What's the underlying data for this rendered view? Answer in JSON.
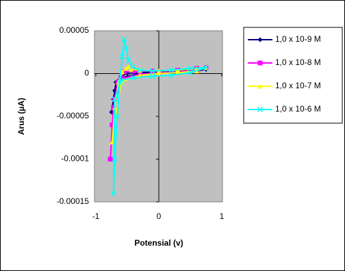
{
  "chart_data": {
    "type": "line",
    "x_label": "Potensial (v)",
    "y_label": "Arus (µA)",
    "xlim": [
      -1,
      1
    ],
    "xticks": [
      -1,
      0,
      1
    ],
    "ylim": [
      -0.00015,
      5e-05
    ],
    "yticks": [
      5e-05,
      0,
      -5e-05,
      -0.0001,
      -0.00015
    ],
    "plot_background": "#c0c0c0",
    "legend": "right",
    "series": [
      {
        "name": "1,0 x 10-9 M",
        "color": "#000080",
        "marker": "diamond",
        "x": [
          -0.75,
          -0.72,
          -0.68,
          -0.6,
          -0.5,
          -0.3,
          0,
          0.3,
          0.6,
          0.75,
          0.6,
          0.3,
          0,
          -0.3,
          -0.6,
          -0.7,
          -0.75
        ],
        "values": [
          -4.5e-05,
          -3e-05,
          -1e-05,
          -3e-06,
          0,
          1e-06,
          2e-06,
          3e-06,
          4e-06,
          5e-06,
          3e-06,
          2e-06,
          1e-06,
          0,
          -5e-06,
          -2e-05,
          -4.5e-05
        ]
      },
      {
        "name": "1,0 x 10-8 M",
        "color": "#ff00ff",
        "marker": "square",
        "x": [
          -0.77,
          -0.74,
          -0.7,
          -0.65,
          -0.55,
          -0.4,
          -0.1,
          0.3,
          0.6,
          0.75,
          0.6,
          0.3,
          0,
          -0.3,
          -0.6,
          -0.72,
          -0.77
        ],
        "values": [
          -0.0001,
          -6e-05,
          -3e-05,
          -1e-05,
          2e-06,
          3e-06,
          3e-06,
          4e-06,
          6e-06,
          7e-06,
          4e-06,
          2e-06,
          1e-06,
          -1e-06,
          -6e-06,
          -4e-05,
          -0.0001
        ]
      },
      {
        "name": "1,0 x 10-7 M",
        "color": "#ffff00",
        "marker": "triangle",
        "x": [
          -0.74,
          -0.7,
          -0.64,
          -0.58,
          -0.52,
          -0.48,
          -0.44,
          -0.3,
          0,
          0.3,
          0.6,
          0.75,
          0.6,
          0.3,
          0,
          -0.3,
          -0.6,
          -0.74
        ],
        "values": [
          -8e-05,
          -4e-05,
          -1e-05,
          2e-06,
          6e-06,
          8e-06,
          5e-06,
          4e-06,
          3e-06,
          4e-06,
          6e-06,
          7e-06,
          3e-06,
          1e-06,
          0,
          -2e-06,
          -1e-05,
          -8e-05
        ]
      },
      {
        "name": "1,0 x 10-6 M",
        "color": "#00ffff",
        "marker": "cross",
        "x": [
          -0.72,
          -0.7,
          -0.66,
          -0.62,
          -0.58,
          -0.55,
          -0.52,
          -0.48,
          -0.42,
          -0.3,
          -0.1,
          0.2,
          0.5,
          0.75,
          0.5,
          0.2,
          -0.1,
          -0.4,
          -0.6,
          -0.7,
          -0.72
        ],
        "values": [
          -0.00014,
          -0.0001,
          -5e-05,
          -1e-05,
          2e-05,
          4e-05,
          3e-05,
          1.5e-05,
          8e-06,
          4e-06,
          3e-06,
          4e-06,
          6e-06,
          7e-06,
          1e-06,
          -2e-06,
          -3e-06,
          -5e-06,
          -8e-06,
          -3e-05,
          -0.00014
        ]
      }
    ]
  }
}
